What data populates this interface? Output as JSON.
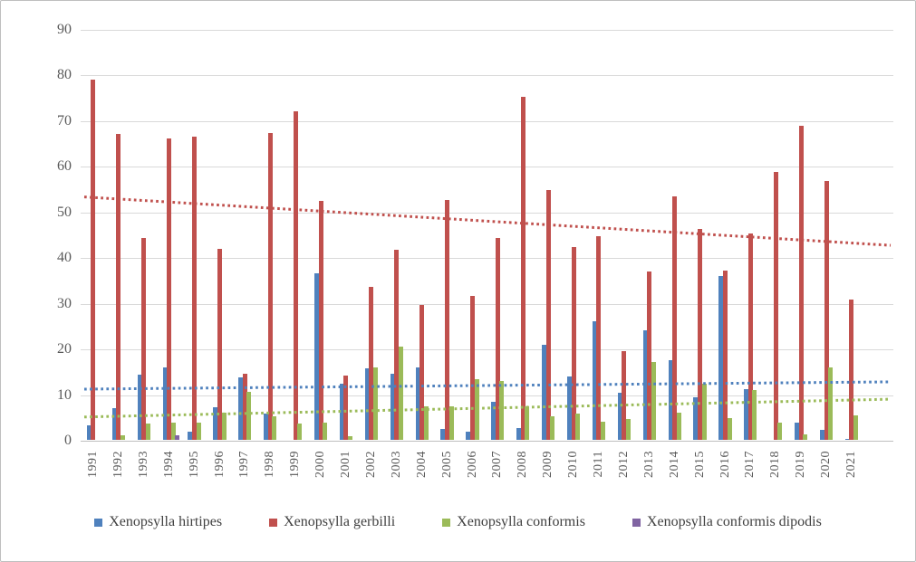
{
  "chart_data": {
    "type": "bar",
    "title": "",
    "xlabel": "",
    "ylabel": "",
    "categories": [
      "1991",
      "1992",
      "1993",
      "1994",
      "1995",
      "1996",
      "1997",
      "1998",
      "1999",
      "2000",
      "2001",
      "2002",
      "2003",
      "2004",
      "2005",
      "2006",
      "2007",
      "2008",
      "2009",
      "2010",
      "2011",
      "2012",
      "2013",
      "2014",
      "2015",
      "2016",
      "2017",
      "2018",
      "2019",
      "2020",
      "2021"
    ],
    "series": [
      {
        "name": "Xenopsylla hirtipes",
        "color": "#4f81bd",
        "values": [
          3.2,
          7,
          14.2,
          15.8,
          1.8,
          7.1,
          13.6,
          5.8,
          0,
          36.4,
          12.3,
          15.6,
          14.5,
          15.9,
          2.3,
          1.7,
          8.3,
          2.6,
          20.8,
          13.9,
          26,
          10.4,
          24,
          17.4,
          9.4,
          35.9,
          11.2,
          0,
          3.7,
          2.2,
          0.3
        ]
      },
      {
        "name": "Xenopsylla gerbilli",
        "color": "#c0504d",
        "values": [
          79,
          67,
          44.3,
          66,
          66.4,
          41.8,
          14.4,
          67.3,
          72,
          52.3,
          14.1,
          33.6,
          41.7,
          29.5,
          52.5,
          31.6,
          44.2,
          75.2,
          54.7,
          42.3,
          44.6,
          19.5,
          36.9,
          53.3,
          46.2,
          37.1,
          45.3,
          58.6,
          68.8,
          56.7,
          30.8
        ]
      },
      {
        "name": "Xenopsylla conformis",
        "color": "#9bbb59",
        "values": [
          0,
          1,
          3.5,
          3.8,
          3.8,
          6,
          10.6,
          5.2,
          3.5,
          3.8,
          0.7,
          15.9,
          20.4,
          7.4,
          7.3,
          13.2,
          12.9,
          7.3,
          5.2,
          5.8,
          4,
          4.5,
          17,
          5.9,
          12.2,
          4.7,
          10.9,
          3.8,
          1.2,
          15.8,
          5.4
        ]
      },
      {
        "name": "Xenopsylla conformis dipodis",
        "color": "#8064a2",
        "values": [
          0,
          0,
          0,
          1,
          0,
          0,
          0,
          0,
          0,
          0,
          0,
          0,
          0,
          0,
          0,
          0,
          0,
          0,
          0,
          0,
          0,
          0,
          0,
          0,
          0,
          0,
          0,
          0,
          0,
          0,
          0
        ]
      }
    ],
    "trendlines": [
      {
        "series": "Xenopsylla gerbilli",
        "color": "#c0504d",
        "start_value": 53.4,
        "end_value": 42.8,
        "style": "dotted"
      },
      {
        "series": "Xenopsylla hirtipes",
        "color": "#4f81bd",
        "start_value": 11.3,
        "end_value": 12.9,
        "style": "dotted"
      },
      {
        "series": "Xenopsylla conformis",
        "color": "#9bbb59",
        "start_value": 5.2,
        "end_value": 9.1,
        "style": "dotted"
      }
    ],
    "y_axis": {
      "min": 0,
      "max": 90,
      "step": 10,
      "tick_labels": [
        "0",
        "10",
        "20",
        "30",
        "40",
        "50",
        "60",
        "70",
        "80",
        "90"
      ]
    },
    "x_axis": {
      "label_rotation_deg": 90
    },
    "legend_position": "bottom",
    "grid": true,
    "colors": {
      "gridline": "#d9d9d9",
      "axis_line": "#bfbfbf",
      "tick_text": "#595959",
      "legend_text": "#404040",
      "background": "#ffffff"
    }
  }
}
